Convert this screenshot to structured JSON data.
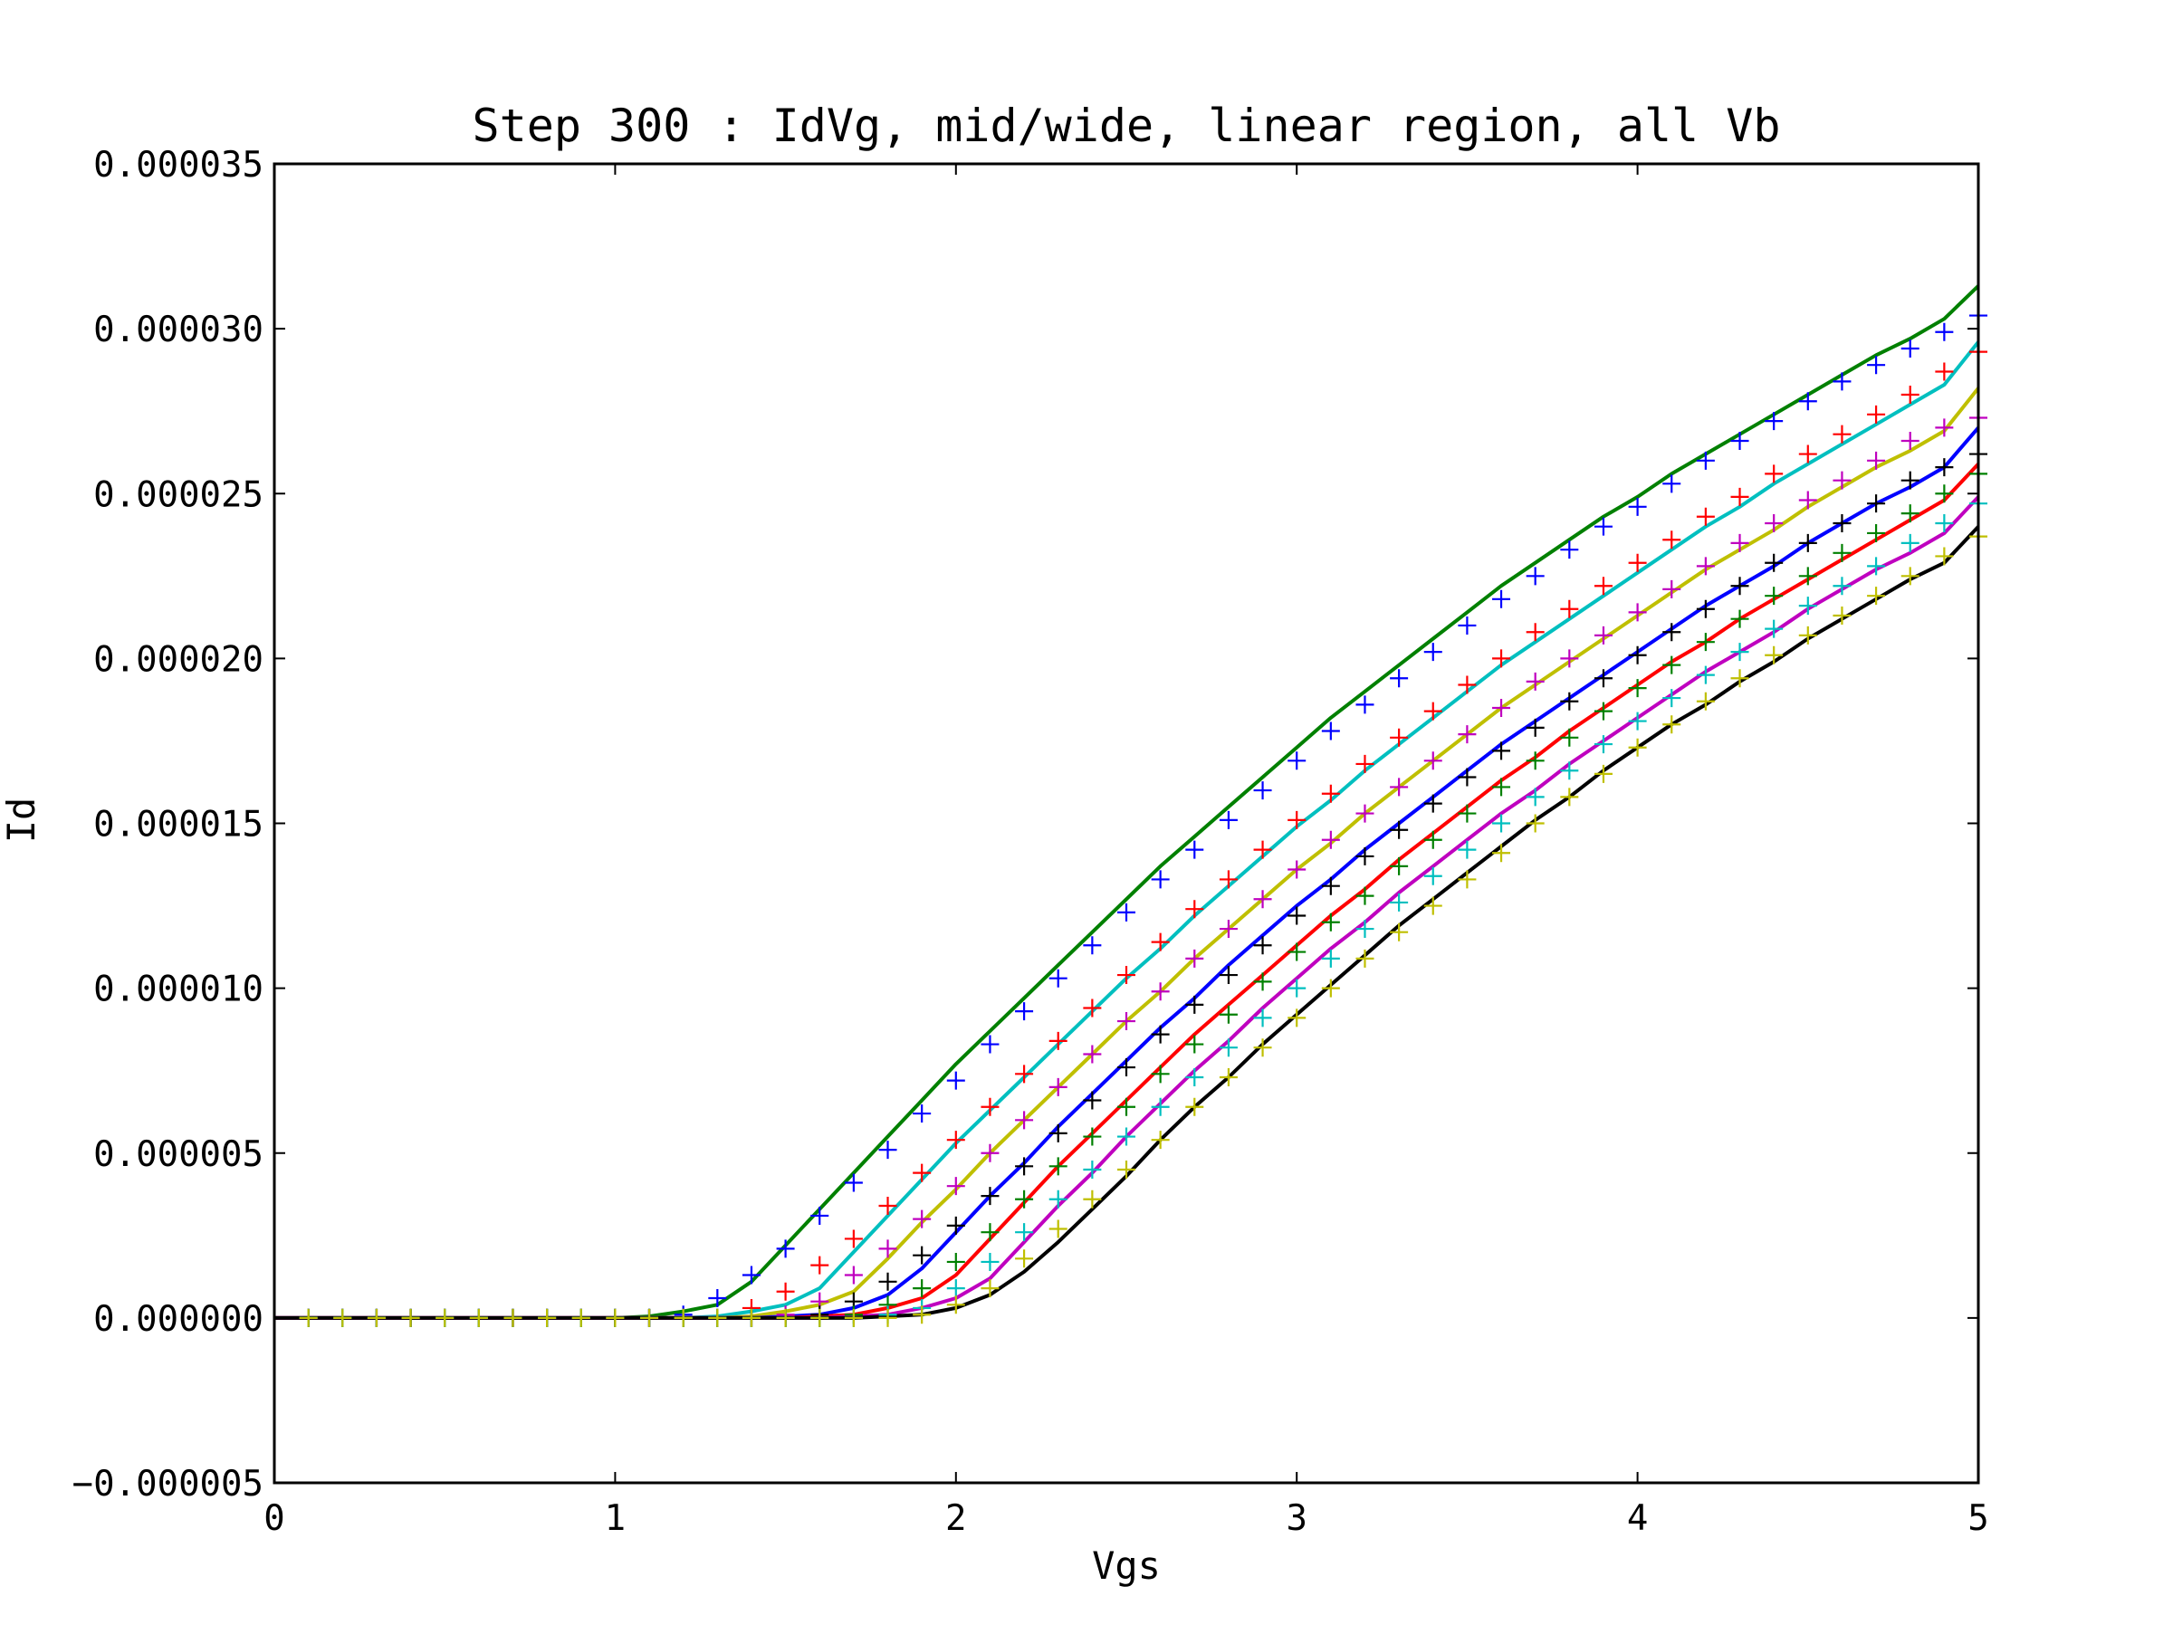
{
  "chart_data": {
    "type": "line",
    "title": "Step 300 : IdVg, mid/wide, linear region, all Vb",
    "xlabel": "Vgs",
    "ylabel": "Id",
    "xlim": [
      0,
      5
    ],
    "ylim": [
      -5e-06,
      3.5e-05
    ],
    "xticks": [
      0,
      1,
      2,
      3,
      4,
      5
    ],
    "xtick_labels": [
      "0",
      "1",
      "2",
      "3",
      "4",
      "5"
    ],
    "yticks": [
      -5e-06,
      0,
      5e-06,
      1e-05,
      1.5e-05,
      2e-05,
      2.5e-05,
      3e-05,
      3.5e-05
    ],
    "ytick_labels": [
      "−0.000005",
      "0.000000",
      "0.000005",
      "0.000010",
      "0.000015",
      "0.000020",
      "0.000025",
      "0.000030",
      "0.000035"
    ],
    "grid": false,
    "legend": "none",
    "x_points": [
      0,
      0.1,
      0.2,
      0.3,
      0.4,
      0.5,
      0.6,
      0.7,
      0.8,
      0.9,
      1.0,
      1.1,
      1.2,
      1.3,
      1.4,
      1.5,
      1.6,
      1.7,
      1.8,
      1.9,
      2.0,
      2.1,
      2.2,
      2.3,
      2.4,
      2.5,
      2.6,
      2.7,
      2.8,
      2.9,
      3.0,
      3.1,
      3.2,
      3.3,
      3.4,
      3.5,
      3.6,
      3.7,
      3.8,
      3.9,
      4.0,
      4.1,
      4.2,
      4.3,
      4.4,
      4.5,
      4.6,
      4.7,
      4.8,
      4.9,
      5.0
    ],
    "series": [
      {
        "color": "#008000",
        "style": "line",
        "values": [
          0,
          0,
          0,
          0,
          0,
          0,
          0,
          0,
          0,
          0,
          0,
          5e-08,
          2e-07,
          4e-07,
          1.1e-06,
          2.2e-06,
          3.3e-06,
          4.4e-06,
          5.5e-06,
          6.6e-06,
          7.7e-06,
          8.7e-06,
          9.7e-06,
          1.07e-05,
          1.17e-05,
          1.27e-05,
          1.37e-05,
          1.46e-05,
          1.55e-05,
          1.64e-05,
          1.73e-05,
          1.82e-05,
          1.9e-05,
          1.98e-05,
          2.06e-05,
          2.14e-05,
          2.22e-05,
          2.29e-05,
          2.36e-05,
          2.43e-05,
          2.49e-05,
          2.56e-05,
          2.62e-05,
          2.68e-05,
          2.74e-05,
          2.8e-05,
          2.86e-05,
          2.92e-05,
          2.97e-05,
          3.03e-05,
          3.13e-05
        ]
      },
      {
        "color": "#00bfbf",
        "style": "line",
        "values": [
          0,
          0,
          0,
          0,
          0,
          0,
          0,
          0,
          0,
          0,
          0,
          0,
          0,
          5e-08,
          2e-07,
          4e-07,
          9e-07,
          2e-06,
          3.1e-06,
          4.2e-06,
          5.3e-06,
          6.3e-06,
          7.3e-06,
          8.3e-06,
          9.3e-06,
          1.03e-05,
          1.12e-05,
          1.22e-05,
          1.31e-05,
          1.4e-05,
          1.49e-05,
          1.57e-05,
          1.66e-05,
          1.74e-05,
          1.82e-05,
          1.9e-05,
          1.98e-05,
          2.05e-05,
          2.12e-05,
          2.19e-05,
          2.26e-05,
          2.33e-05,
          2.4e-05,
          2.46e-05,
          2.53e-05,
          2.59e-05,
          2.65e-05,
          2.71e-05,
          2.77e-05,
          2.83e-05,
          2.96e-05
        ]
      },
      {
        "color": "#bfbf00",
        "style": "line",
        "values": [
          0,
          0,
          0,
          0,
          0,
          0,
          0,
          0,
          0,
          0,
          0,
          0,
          0,
          0,
          5e-08,
          2e-07,
          4e-07,
          8e-07,
          1.8e-06,
          2.9e-06,
          3.9e-06,
          5e-06,
          6e-06,
          7e-06,
          8e-06,
          9e-06,
          9.9e-06,
          1.09e-05,
          1.18e-05,
          1.27e-05,
          1.36e-05,
          1.44e-05,
          1.53e-05,
          1.61e-05,
          1.69e-05,
          1.77e-05,
          1.85e-05,
          1.92e-05,
          1.99e-05,
          2.06e-05,
          2.13e-05,
          2.2e-05,
          2.27e-05,
          2.33e-05,
          2.39e-05,
          2.46e-05,
          2.52e-05,
          2.58e-05,
          2.63e-05,
          2.69e-05,
          2.82e-05
        ]
      },
      {
        "color": "#0000ff",
        "style": "line",
        "values": [
          0,
          0,
          0,
          0,
          0,
          0,
          0,
          0,
          0,
          0,
          0,
          0,
          0,
          0,
          0,
          5e-08,
          1e-07,
          3e-07,
          7e-07,
          1.5e-06,
          2.6e-06,
          3.7e-06,
          4.7e-06,
          5.8e-06,
          6.8e-06,
          7.8e-06,
          8.8e-06,
          9.7e-06,
          1.07e-05,
          1.16e-05,
          1.25e-05,
          1.33e-05,
          1.42e-05,
          1.5e-05,
          1.58e-05,
          1.66e-05,
          1.74e-05,
          1.81e-05,
          1.88e-05,
          1.95e-05,
          2.02e-05,
          2.09e-05,
          2.16e-05,
          2.22e-05,
          2.28e-05,
          2.35e-05,
          2.41e-05,
          2.47e-05,
          2.52e-05,
          2.58e-05,
          2.7e-05
        ]
      },
      {
        "color": "#ff0000",
        "style": "line",
        "values": [
          0,
          0,
          0,
          0,
          0,
          0,
          0,
          0,
          0,
          0,
          0,
          0,
          0,
          0,
          0,
          0,
          5e-08,
          1e-07,
          3e-07,
          6e-07,
          1.3e-06,
          2.4e-06,
          3.5e-06,
          4.6e-06,
          5.6e-06,
          6.6e-06,
          7.6e-06,
          8.6e-06,
          9.5e-06,
          1.04e-05,
          1.13e-05,
          1.22e-05,
          1.3e-05,
          1.39e-05,
          1.47e-05,
          1.55e-05,
          1.63e-05,
          1.7e-05,
          1.78e-05,
          1.85e-05,
          1.92e-05,
          1.99e-05,
          2.05e-05,
          2.12e-05,
          2.18e-05,
          2.24e-05,
          2.3e-05,
          2.36e-05,
          2.42e-05,
          2.48e-05,
          2.59e-05
        ]
      },
      {
        "color": "#bf00bf",
        "style": "line",
        "values": [
          0,
          0,
          0,
          0,
          0,
          0,
          0,
          0,
          0,
          0,
          0,
          0,
          0,
          0,
          0,
          0,
          0,
          5e-08,
          1e-07,
          3e-07,
          6e-07,
          1.2e-06,
          2.3e-06,
          3.4e-06,
          4.4e-06,
          5.5e-06,
          6.5e-06,
          7.5e-06,
          8.4e-06,
          9.4e-06,
          1.03e-05,
          1.12e-05,
          1.2e-05,
          1.29e-05,
          1.37e-05,
          1.45e-05,
          1.53e-05,
          1.6e-05,
          1.68e-05,
          1.75e-05,
          1.82e-05,
          1.89e-05,
          1.96e-05,
          2.02e-05,
          2.08e-05,
          2.15e-05,
          2.21e-05,
          2.27e-05,
          2.32e-05,
          2.38e-05,
          2.49e-05
        ]
      },
      {
        "color": "#000000",
        "style": "line",
        "values": [
          0,
          0,
          0,
          0,
          0,
          0,
          0,
          0,
          0,
          0,
          0,
          0,
          0,
          0,
          0,
          0,
          0,
          0,
          5e-08,
          1e-07,
          3e-07,
          7e-07,
          1.4e-06,
          2.3e-06,
          3.3e-06,
          4.3e-06,
          5.4e-06,
          6.4e-06,
          7.3e-06,
          8.3e-06,
          9.2e-06,
          1.01e-05,
          1.1e-05,
          1.19e-05,
          1.27e-05,
          1.35e-05,
          1.43e-05,
          1.51e-05,
          1.58e-05,
          1.66e-05,
          1.73e-05,
          1.8e-05,
          1.86e-05,
          1.93e-05,
          1.99e-05,
          2.06e-05,
          2.12e-05,
          2.18e-05,
          2.24e-05,
          2.29e-05,
          2.4e-05
        ]
      },
      {
        "color": "#0000ff",
        "style": "markers",
        "values": [
          0,
          0,
          0,
          0,
          0,
          0,
          0,
          0,
          0,
          0,
          0,
          0,
          1e-07,
          6e-07,
          1.3e-06,
          2.1e-06,
          3.1e-06,
          4.1e-06,
          5.1e-06,
          6.2e-06,
          7.2e-06,
          8.3e-06,
          9.3e-06,
          1.03e-05,
          1.13e-05,
          1.23e-05,
          1.33e-05,
          1.42e-05,
          1.51e-05,
          1.6e-05,
          1.69e-05,
          1.78e-05,
          1.86e-05,
          1.94e-05,
          2.02e-05,
          2.1e-05,
          2.18e-05,
          2.25e-05,
          2.33e-05,
          2.4e-05,
          2.46e-05,
          2.53e-05,
          2.6e-05,
          2.66e-05,
          2.72e-05,
          2.78e-05,
          2.84e-05,
          2.89e-05,
          2.94e-05,
          2.99e-05,
          3.04e-05
        ]
      },
      {
        "color": "#ff0000",
        "style": "markers",
        "values": [
          0,
          0,
          0,
          0,
          0,
          0,
          0,
          0,
          0,
          0,
          0,
          0,
          0,
          0,
          3e-07,
          8e-07,
          1.6e-06,
          2.4e-06,
          3.4e-06,
          4.4e-06,
          5.4e-06,
          6.4e-06,
          7.4e-06,
          8.4e-06,
          9.4e-06,
          1.04e-05,
          1.14e-05,
          1.24e-05,
          1.33e-05,
          1.42e-05,
          1.51e-05,
          1.59e-05,
          1.68e-05,
          1.76e-05,
          1.84e-05,
          1.92e-05,
          2e-05,
          2.08e-05,
          2.15e-05,
          2.22e-05,
          2.29e-05,
          2.36e-05,
          2.43e-05,
          2.49e-05,
          2.56e-05,
          2.62e-05,
          2.68e-05,
          2.74e-05,
          2.8e-05,
          2.87e-05,
          2.93e-05
        ]
      },
      {
        "color": "#bf00bf",
        "style": "markers",
        "values": [
          0,
          0,
          0,
          0,
          0,
          0,
          0,
          0,
          0,
          0,
          0,
          0,
          0,
          0,
          0,
          1e-07,
          5e-07,
          1.3e-06,
          2.1e-06,
          3e-06,
          4e-06,
          5e-06,
          6e-06,
          7e-06,
          8e-06,
          9e-06,
          9.9e-06,
          1.09e-05,
          1.18e-05,
          1.27e-05,
          1.36e-05,
          1.45e-05,
          1.53e-05,
          1.61e-05,
          1.69e-05,
          1.77e-05,
          1.85e-05,
          1.93e-05,
          2e-05,
          2.07e-05,
          2.14e-05,
          2.21e-05,
          2.28e-05,
          2.35e-05,
          2.41e-05,
          2.48e-05,
          2.54e-05,
          2.6e-05,
          2.66e-05,
          2.7e-05,
          2.73e-05
        ]
      },
      {
        "color": "#000000",
        "style": "markers",
        "values": [
          0,
          0,
          0,
          0,
          0,
          0,
          0,
          0,
          0,
          0,
          0,
          0,
          0,
          0,
          0,
          0,
          1e-07,
          5e-07,
          1.1e-06,
          1.9e-06,
          2.8e-06,
          3.7e-06,
          4.6e-06,
          5.6e-06,
          6.6e-06,
          7.6e-06,
          8.6e-06,
          9.5e-06,
          1.04e-05,
          1.13e-05,
          1.22e-05,
          1.31e-05,
          1.4e-05,
          1.48e-05,
          1.56e-05,
          1.64e-05,
          1.72e-05,
          1.79e-05,
          1.87e-05,
          1.94e-05,
          2.01e-05,
          2.08e-05,
          2.15e-05,
          2.22e-05,
          2.29e-05,
          2.35e-05,
          2.41e-05,
          2.47e-05,
          2.54e-05,
          2.58e-05,
          2.62e-05
        ]
      },
      {
        "color": "#008000",
        "style": "markers",
        "values": [
          0,
          0,
          0,
          0,
          0,
          0,
          0,
          0,
          0,
          0,
          0,
          0,
          0,
          0,
          0,
          0,
          0,
          1e-07,
          4e-07,
          9e-07,
          1.7e-06,
          2.6e-06,
          3.6e-06,
          4.6e-06,
          5.5e-06,
          6.4e-06,
          7.4e-06,
          8.3e-06,
          9.2e-06,
          1.02e-05,
          1.11e-05,
          1.2e-05,
          1.28e-05,
          1.37e-05,
          1.45e-05,
          1.53e-05,
          1.61e-05,
          1.69e-05,
          1.76e-05,
          1.84e-05,
          1.91e-05,
          1.98e-05,
          2.05e-05,
          2.12e-05,
          2.19e-05,
          2.25e-05,
          2.32e-05,
          2.38e-05,
          2.44e-05,
          2.5e-05,
          2.56e-05
        ]
      },
      {
        "color": "#00bfbf",
        "style": "markers",
        "values": [
          0,
          0,
          0,
          0,
          0,
          0,
          0,
          0,
          0,
          0,
          0,
          0,
          0,
          0,
          0,
          0,
          0,
          0,
          1e-07,
          3e-07,
          9e-07,
          1.7e-06,
          2.6e-06,
          3.6e-06,
          4.5e-06,
          5.5e-06,
          6.4e-06,
          7.3e-06,
          8.2e-06,
          9.1e-06,
          1e-05,
          1.09e-05,
          1.18e-05,
          1.26e-05,
          1.34e-05,
          1.42e-05,
          1.5e-05,
          1.58e-05,
          1.66e-05,
          1.74e-05,
          1.81e-05,
          1.88e-05,
          1.95e-05,
          2.02e-05,
          2.09e-05,
          2.16e-05,
          2.22e-05,
          2.28e-05,
          2.35e-05,
          2.41e-05,
          2.47e-05
        ]
      },
      {
        "color": "#bfbf00",
        "style": "markers",
        "values": [
          0,
          0,
          0,
          0,
          0,
          0,
          0,
          0,
          0,
          0,
          0,
          0,
          0,
          0,
          0,
          0,
          0,
          0,
          0,
          1e-07,
          4e-07,
          9e-07,
          1.8e-06,
          2.7e-06,
          3.6e-06,
          4.5e-06,
          5.4e-06,
          6.4e-06,
          7.3e-06,
          8.2e-06,
          9.1e-06,
          1e-05,
          1.09e-05,
          1.17e-05,
          1.25e-05,
          1.33e-05,
          1.41e-05,
          1.5e-05,
          1.58e-05,
          1.65e-05,
          1.73e-05,
          1.8e-05,
          1.87e-05,
          1.94e-05,
          2.01e-05,
          2.07e-05,
          2.13e-05,
          2.19e-05,
          2.25e-05,
          2.31e-05,
          2.37e-05
        ]
      }
    ]
  }
}
